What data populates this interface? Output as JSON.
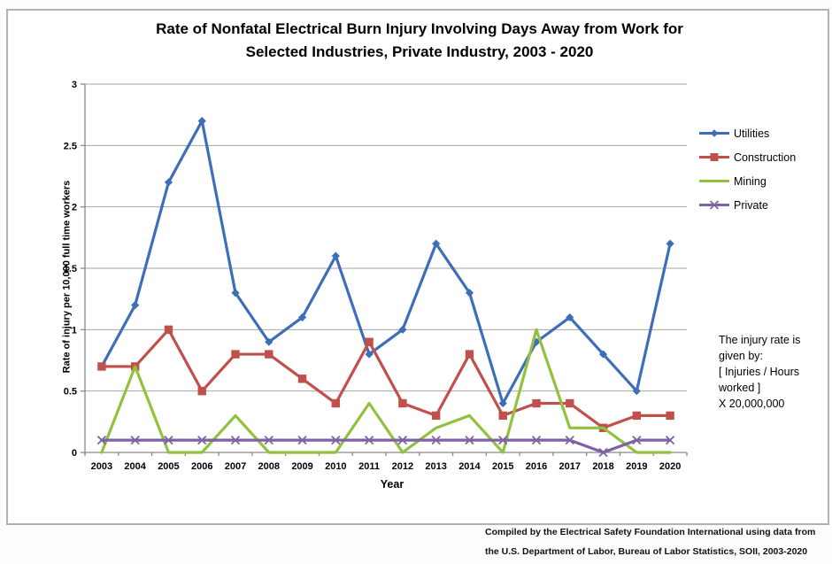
{
  "page": {
    "title_line1": "Rate of Nonfatal Electrical Burn Injury Involving Days Away from Work for",
    "title_line2": "Selected Industries, Private Industry, 2003 - 2020",
    "annotation": "The injury rate is\ngiven by:\n[ Injuries / Hours\nworked ]\nX 20,000,000",
    "footer_line1": "Compiled by the Electrical Safety Foundation International using data from",
    "footer_line2": "the U.S. Department of Labor, Bureau of Labor Statistics, SOII, 2003-2020"
  },
  "chart_data": {
    "type": "line",
    "title": "Rate of Nonfatal Electrical Burn Injury Involving Days Away from Work for Selected Industries, Private Industry, 2003 - 2020",
    "xlabel": "Year",
    "ylabel": "Rate of injury per 10,000 full time workers",
    "ylim": [
      0,
      3
    ],
    "ytick_step": 0.5,
    "grid": true,
    "legend_position": "right",
    "categories": [
      "2003",
      "2004",
      "2005",
      "2006",
      "2007",
      "2008",
      "2009",
      "2010",
      "2011",
      "2012",
      "2013",
      "2014",
      "2015",
      "2016",
      "2017",
      "2018",
      "2019",
      "2020"
    ],
    "series": [
      {
        "name": "Utilities",
        "color": "#3D6EB7",
        "marker": "diamond",
        "values": [
          0.7,
          1.2,
          2.2,
          2.7,
          1.3,
          0.9,
          1.1,
          1.6,
          0.8,
          1.0,
          1.7,
          1.3,
          0.4,
          0.9,
          1.1,
          0.8,
          0.5,
          1.7
        ]
      },
      {
        "name": "Construction",
        "color": "#C0504D",
        "marker": "square",
        "values": [
          0.7,
          0.7,
          1.0,
          0.5,
          0.8,
          0.8,
          0.6,
          0.4,
          0.9,
          0.4,
          0.3,
          0.8,
          0.3,
          0.4,
          0.4,
          0.2,
          0.3,
          0.3
        ]
      },
      {
        "name": "Mining",
        "color": "#92C13E",
        "marker": "none",
        "values": [
          0,
          0.7,
          0,
          0,
          0.3,
          0,
          0,
          0,
          0.4,
          0,
          0.2,
          0.3,
          0,
          1.0,
          0.2,
          0.2,
          0,
          0
        ]
      },
      {
        "name": "Private",
        "color": "#7D62A5",
        "marker": "x",
        "values": [
          0.1,
          0.1,
          0.1,
          0.1,
          0.1,
          0.1,
          0.1,
          0.1,
          0.1,
          0.1,
          0.1,
          0.1,
          0.1,
          0.1,
          0.1,
          0,
          0.1,
          0.1
        ]
      }
    ],
    "axis_color": "#898989",
    "grid_color": "#a6a6a6"
  }
}
